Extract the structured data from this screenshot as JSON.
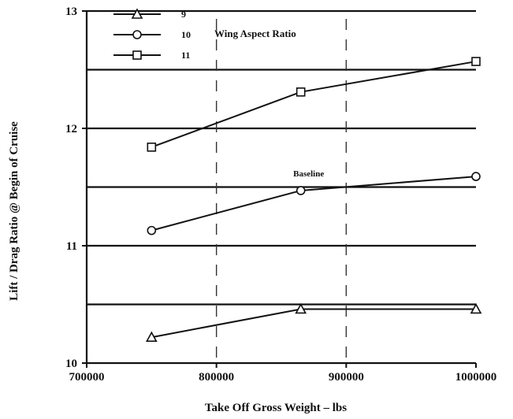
{
  "chart_data": {
    "type": "line",
    "title": "",
    "xlabel": "Take Off Gross Weight – lbs",
    "ylabel": "Lift / Drag Ratio @ Begin of Cruise",
    "xlim": [
      700000,
      1000000
    ],
    "ylim": [
      10,
      13
    ],
    "x_ticks": [
      "700000",
      "800000",
      "900000",
      "1000000"
    ],
    "y_ticks": [
      "10",
      "11",
      "12",
      "13"
    ],
    "legend_title": "Wing Aspect Ratio",
    "legend_position": "top-left",
    "grid": "horizontal",
    "series": [
      {
        "name": "9",
        "marker": "triangle",
        "x": [
          750000,
          865000,
          1000000
        ],
        "y": [
          10.22,
          10.46,
          10.46
        ]
      },
      {
        "name": "10",
        "marker": "circle",
        "x": [
          750000,
          865000,
          1000000
        ],
        "y": [
          11.13,
          11.47,
          11.59
        ]
      },
      {
        "name": "11",
        "marker": "square",
        "x": [
          750000,
          865000,
          1000000
        ],
        "y": [
          11.84,
          12.31,
          12.57
        ]
      }
    ],
    "annotations": [
      {
        "text": "Baseline",
        "x": 865000,
        "y": 11.55
      }
    ]
  }
}
